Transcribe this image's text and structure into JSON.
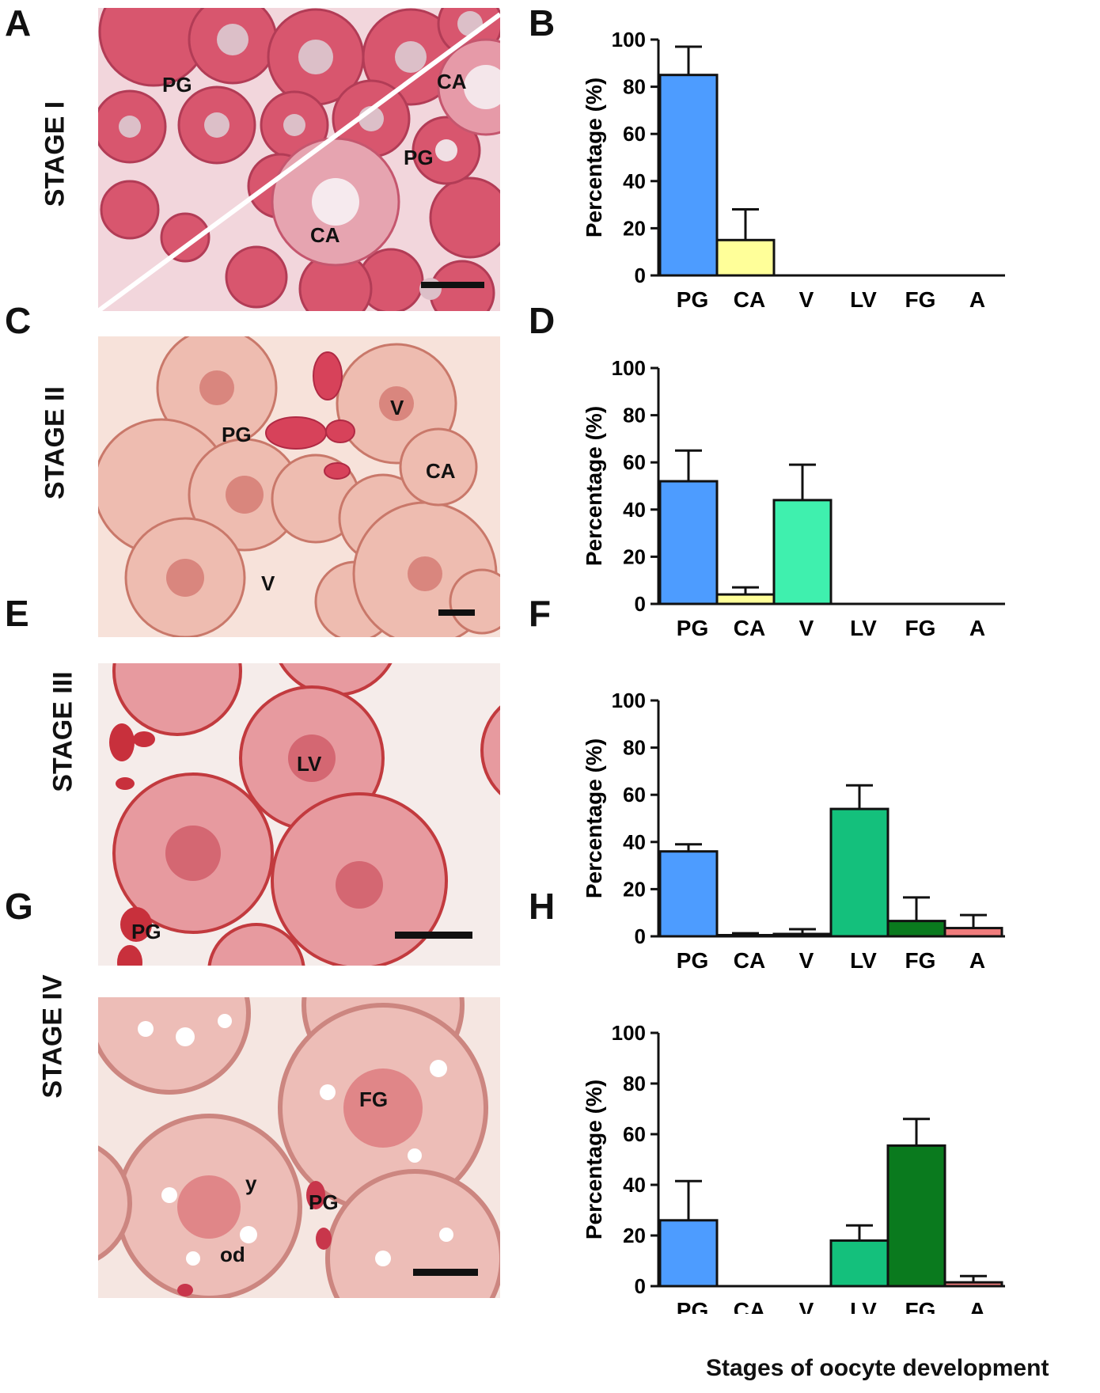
{
  "panels": [
    {
      "letter": "A",
      "stage": "STAGE I",
      "labels": [
        "PG",
        "CA",
        "PG",
        "CA"
      ]
    },
    {
      "letter": "C",
      "stage": "STAGE II",
      "labels": [
        "PG",
        "V",
        "CA",
        "V"
      ]
    },
    {
      "letter": "E",
      "stage": "STAGE III",
      "labels": [
        "LV",
        "PG"
      ]
    },
    {
      "letter": "G",
      "stage": "STAGE IV",
      "labels": [
        "FG",
        "y",
        "PG",
        "od"
      ]
    }
  ],
  "chart_letters": [
    "B",
    "D",
    "F",
    "H"
  ],
  "colors": {
    "PG": "#4d9cff",
    "CA": "#ffff99",
    "V": "#3ff0ae",
    "LV": "#14c07c",
    "FG": "#0a7a1e",
    "A": "#f07c7c"
  },
  "chart_data": [
    {
      "type": "bar",
      "categories": [
        "PG",
        "CA",
        "V",
        "LV",
        "FG",
        "A"
      ],
      "values": [
        85,
        15,
        0,
        0,
        0,
        0
      ],
      "errors": [
        12,
        13,
        0,
        0,
        0,
        0
      ],
      "ylabel": "Percentage (%)",
      "ylim": [
        0,
        100
      ],
      "yticks": [
        "0",
        "20",
        "40",
        "60",
        "80",
        "100"
      ]
    },
    {
      "type": "bar",
      "categories": [
        "PG",
        "CA",
        "V",
        "LV",
        "FG",
        "A"
      ],
      "values": [
        52,
        4,
        44,
        0,
        0,
        0
      ],
      "errors": [
        13,
        3,
        15,
        0,
        0,
        0
      ],
      "ylabel": "Percentage (%)",
      "ylim": [
        0,
        100
      ],
      "yticks": [
        "0",
        "20",
        "40",
        "60",
        "80",
        "100"
      ]
    },
    {
      "type": "bar",
      "categories": [
        "PG",
        "CA",
        "V",
        "LV",
        "FG",
        "A"
      ],
      "values": [
        36,
        0.5,
        1,
        54,
        6.5,
        3.5
      ],
      "errors": [
        3,
        0.8,
        2,
        10,
        10,
        5.5
      ],
      "ylabel": "Percentage (%)",
      "ylim": [
        0,
        100
      ],
      "yticks": [
        "0",
        "20",
        "40",
        "60",
        "80",
        "100"
      ]
    },
    {
      "type": "bar",
      "categories": [
        "PG",
        "CA",
        "V",
        "LV",
        "FG",
        "A"
      ],
      "values": [
        26,
        0,
        0,
        18,
        55.5,
        1.5
      ],
      "errors": [
        15.5,
        0,
        0,
        6,
        10.5,
        2.5
      ],
      "ylabel": "Percentage (%)",
      "ylim": [
        0,
        100
      ],
      "yticks": [
        "0",
        "20",
        "40",
        "60",
        "80",
        "100"
      ]
    }
  ],
  "xlabel": "Stages of oocyte development"
}
